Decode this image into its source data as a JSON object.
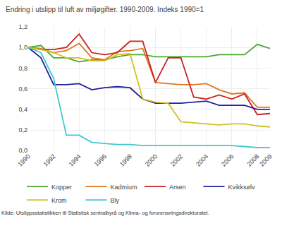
{
  "chart_data": {
    "type": "line",
    "title": "Endring i utslipp til luft av miljøgifter. 1990-2009. Indeks 1990=1",
    "annotations": [
      "Kilde: Utslippsstatistikken til Statistisk sentralbyrå og Klima- og forurensningsdirektoratet."
    ],
    "x": [
      1990,
      1991,
      1992,
      1993,
      1994,
      1995,
      1996,
      1997,
      1998,
      1999,
      2000,
      2001,
      2002,
      2003,
      2004,
      2005,
      2006,
      2007,
      2008,
      2009
    ],
    "series": [
      {
        "name": "Kopper",
        "color": "#4aa832",
        "values": [
          1.0,
          1.02,
          0.9,
          0.9,
          0.86,
          0.88,
          0.88,
          0.91,
          0.93,
          0.93,
          0.91,
          0.91,
          0.91,
          0.91,
          0.91,
          0.93,
          0.93,
          0.93,
          1.03,
          0.99
        ]
      },
      {
        "name": "Kadmium",
        "color": "#e07820",
        "values": [
          1.0,
          0.99,
          0.95,
          0.97,
          1.04,
          0.9,
          0.88,
          0.96,
          0.97,
          0.99,
          0.66,
          0.65,
          0.64,
          0.64,
          0.65,
          0.59,
          0.55,
          0.56,
          0.42,
          0.42
        ]
      },
      {
        "name": "Arsen",
        "color": "#cc2020",
        "values": [
          1.0,
          0.98,
          0.98,
          1.0,
          1.13,
          0.95,
          0.93,
          0.95,
          1.06,
          1.06,
          0.66,
          0.9,
          0.9,
          0.52,
          0.5,
          0.54,
          0.5,
          0.55,
          0.35,
          0.36
        ]
      },
      {
        "name": "Kvikksølv",
        "color": "#2020a0",
        "values": [
          1.0,
          0.9,
          0.64,
          0.64,
          0.65,
          0.59,
          0.61,
          0.62,
          0.61,
          0.5,
          0.46,
          0.46,
          0.46,
          0.47,
          0.48,
          0.44,
          0.44,
          0.44,
          0.4,
          0.4
        ]
      },
      {
        "name": "Krom",
        "color": "#d4c020",
        "values": [
          1.0,
          0.98,
          0.95,
          0.9,
          0.9,
          0.87,
          0.87,
          0.93,
          0.94,
          0.5,
          0.47,
          0.46,
          0.28,
          0.27,
          0.26,
          0.25,
          0.26,
          0.26,
          0.24,
          0.23
        ]
      },
      {
        "name": "Bly",
        "color": "#40c8d0",
        "values": [
          1.0,
          0.95,
          0.7,
          0.15,
          0.15,
          0.08,
          0.07,
          0.06,
          0.06,
          0.05,
          0.05,
          0.05,
          0.05,
          0.05,
          0.05,
          0.05,
          0.05,
          0.04,
          0.03,
          0.03
        ]
      }
    ],
    "xlim": [
      1990,
      2009
    ],
    "xticks": [
      1990,
      1992,
      1994,
      1996,
      1998,
      2000,
      2002,
      2004,
      2006,
      2008,
      2009
    ],
    "ylim": [
      0.0,
      1.2
    ],
    "yticks": [
      {
        "value": 0.0,
        "label": "0,0"
      },
      {
        "value": 0.2,
        "label": "0,2"
      },
      {
        "value": 0.4,
        "label": "0,4"
      },
      {
        "value": 0.6,
        "label": "0,6"
      },
      {
        "value": 0.8,
        "label": "0,8"
      },
      {
        "value": 1.0,
        "label": "1,0"
      },
      {
        "value": 1.2,
        "label": "1,2"
      }
    ],
    "grid": true,
    "legend": "bottom"
  }
}
